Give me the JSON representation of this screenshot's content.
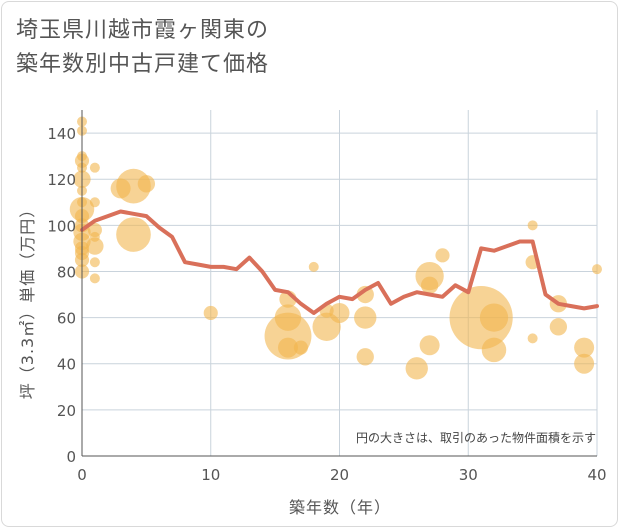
{
  "chart_data": {
    "type": "scatter",
    "title_lines": [
      "埼玉県川越市霞ヶ関東の",
      "築年数別中古戸建て価格"
    ],
    "xlabel": "築年数（年）",
    "ylabel": "坪（3.3㎡）単価（万円）",
    "xlim": [
      0,
      40
    ],
    "ylim": [
      0,
      150
    ],
    "xticks": [
      "0",
      "10",
      "20",
      "30",
      "40"
    ],
    "yticks": [
      "0",
      "20",
      "40",
      "60",
      "80",
      "100",
      "120",
      "140"
    ],
    "note": "円の大きさは、取引のあった物件面積を示す",
    "colors": {
      "bubble": "#f2b54f",
      "line": "#d9705a",
      "grid": "#c9d3dc",
      "axis": "#555555"
    },
    "points": [
      {
        "x": 0,
        "y": 145,
        "s": 1
      },
      {
        "x": 0,
        "y": 141,
        "s": 1
      },
      {
        "x": 0,
        "y": 130,
        "s": 1
      },
      {
        "x": 0,
        "y": 128,
        "s": 2
      },
      {
        "x": 0,
        "y": 125,
        "s": 1
      },
      {
        "x": 0,
        "y": 120,
        "s": 3
      },
      {
        "x": 0,
        "y": 115,
        "s": 1
      },
      {
        "x": 0,
        "y": 110,
        "s": 1
      },
      {
        "x": 0,
        "y": 107,
        "s": 6
      },
      {
        "x": 0,
        "y": 104,
        "s": 2
      },
      {
        "x": 0,
        "y": 100,
        "s": 2
      },
      {
        "x": 0,
        "y": 97,
        "s": 3
      },
      {
        "x": 0,
        "y": 93,
        "s": 3
      },
      {
        "x": 0,
        "y": 90,
        "s": 2
      },
      {
        "x": 0,
        "y": 88,
        "s": 2
      },
      {
        "x": 0,
        "y": 85,
        "s": 2
      },
      {
        "x": 0,
        "y": 80,
        "s": 2
      },
      {
        "x": 1,
        "y": 125,
        "s": 1
      },
      {
        "x": 1,
        "y": 110,
        "s": 1
      },
      {
        "x": 1,
        "y": 98,
        "s": 2
      },
      {
        "x": 1,
        "y": 95,
        "s": 1
      },
      {
        "x": 1,
        "y": 91,
        "s": 3
      },
      {
        "x": 1,
        "y": 84,
        "s": 1
      },
      {
        "x": 1,
        "y": 77,
        "s": 1
      },
      {
        "x": 3,
        "y": 116,
        "s": 4
      },
      {
        "x": 4,
        "y": 117,
        "s": 12
      },
      {
        "x": 4,
        "y": 96,
        "s": 12
      },
      {
        "x": 5,
        "y": 118,
        "s": 3
      },
      {
        "x": 10,
        "y": 62,
        "s": 2
      },
      {
        "x": 16,
        "y": 68,
        "s": 3
      },
      {
        "x": 16,
        "y": 60,
        "s": 7
      },
      {
        "x": 16,
        "y": 52,
        "s": 22
      },
      {
        "x": 16,
        "y": 47,
        "s": 4
      },
      {
        "x": 17,
        "y": 47,
        "s": 2
      },
      {
        "x": 18,
        "y": 82,
        "s": 1
      },
      {
        "x": 19,
        "y": 63,
        "s": 2
      },
      {
        "x": 19,
        "y": 56,
        "s": 8
      },
      {
        "x": 20,
        "y": 62,
        "s": 4
      },
      {
        "x": 22,
        "y": 70,
        "s": 3
      },
      {
        "x": 22,
        "y": 60,
        "s": 5
      },
      {
        "x": 22,
        "y": 43,
        "s": 3
      },
      {
        "x": 26,
        "y": 38,
        "s": 5
      },
      {
        "x": 27,
        "y": 78,
        "s": 8
      },
      {
        "x": 27,
        "y": 74,
        "s": 3
      },
      {
        "x": 27,
        "y": 48,
        "s": 4
      },
      {
        "x": 28,
        "y": 87,
        "s": 2
      },
      {
        "x": 31,
        "y": 60,
        "s": 40
      },
      {
        "x": 32,
        "y": 60,
        "s": 8
      },
      {
        "x": 32,
        "y": 46,
        "s": 6
      },
      {
        "x": 35,
        "y": 100,
        "s": 1
      },
      {
        "x": 35,
        "y": 84,
        "s": 2
      },
      {
        "x": 35,
        "y": 51,
        "s": 1
      },
      {
        "x": 37,
        "y": 66,
        "s": 3
      },
      {
        "x": 37,
        "y": 56,
        "s": 3
      },
      {
        "x": 39,
        "y": 47,
        "s": 4
      },
      {
        "x": 39,
        "y": 40,
        "s": 4
      },
      {
        "x": 40,
        "y": 81,
        "s": 1
      }
    ],
    "line": {
      "x": [
        0,
        1,
        2,
        3,
        4,
        5,
        6,
        7,
        8,
        9,
        10,
        11,
        12,
        13,
        14,
        15,
        16,
        17,
        18,
        19,
        20,
        21,
        22,
        23,
        24,
        25,
        26,
        27,
        28,
        29,
        30,
        31,
        32,
        33,
        34,
        35,
        36,
        37,
        38,
        39,
        40
      ],
      "y": [
        98,
        102,
        104,
        106,
        105,
        104,
        99,
        95,
        84,
        83,
        82,
        82,
        81,
        86,
        80,
        72,
        71,
        66,
        62,
        66,
        69,
        68,
        72,
        75,
        66,
        69,
        71,
        70,
        69,
        74,
        71,
        90,
        89,
        91,
        93,
        93,
        70,
        66,
        65,
        64,
        65
      ]
    }
  }
}
